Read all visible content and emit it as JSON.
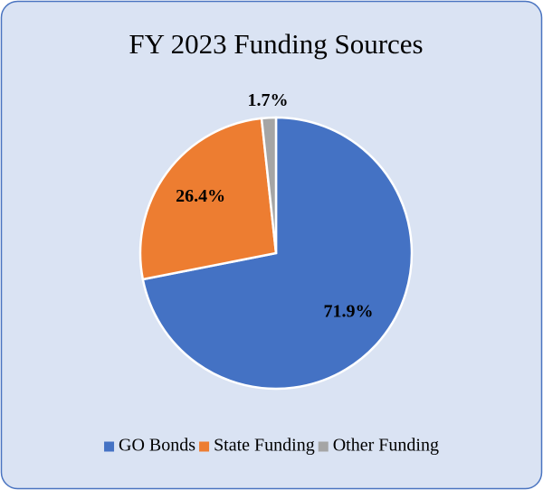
{
  "chart_data": {
    "type": "pie",
    "title": "FY 2023 Funding Sources",
    "categories": [
      "GO Bonds",
      "State Funding",
      "Other Funding"
    ],
    "values": [
      71.9,
      26.4,
      1.7
    ],
    "value_labels": [
      "71.9%",
      "26.4%",
      "1.7%"
    ],
    "colors": [
      "#4472c4",
      "#ed7d31",
      "#a5a5a5"
    ],
    "legend": "bottom"
  }
}
